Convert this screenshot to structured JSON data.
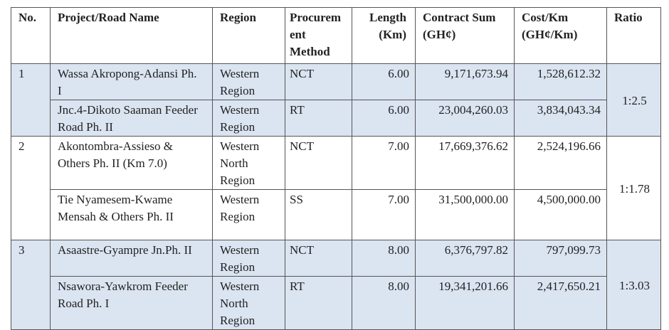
{
  "table": {
    "header": [
      "No.",
      "Project/Road Name",
      "Region",
      "Procurement Method",
      "Length (Km)",
      "Contract Sum (GH¢)",
      "Cost/Km (GH¢/Km)",
      "Ratio"
    ],
    "groups": [
      {
        "no": "1",
        "ratio": "1:2.5",
        "rows": [
          [
            "Wassa Akropong-Adansi Ph. I",
            "Western Region",
            "NCT",
            "6.00",
            "9,171,673.94",
            "1,528,612.32"
          ],
          [
            "Jnc.4-Dikoto Saaman Feeder Road Ph. II",
            "Western Region",
            "RT",
            "6.00",
            "23,004,260.03",
            "3,834,043.34"
          ]
        ]
      },
      {
        "no": "2",
        "ratio": "1:1.78",
        "rows": [
          [
            "Akontombra-Assieso & Others Ph. II (Km 7.0)",
            "Western North Region",
            "NCT",
            "7.00",
            "17,669,376.62",
            "2,524,196.66"
          ],
          [
            "Tie Nyamesem-Kwame Mensah & Others Ph. II",
            "Western Region",
            "SS",
            "7.00",
            "31,500,000.00",
            "4,500,000.00"
          ]
        ]
      },
      {
        "no": "3",
        "ratio": "1:3.03",
        "rows": [
          [
            "Asaastre-Gyampre Jn.Ph. II",
            "Western Region",
            "NCT",
            "8.00",
            "6,376,797.82",
            "797,099.73"
          ],
          [
            "Nsawora-Yawkrom Feeder Road Ph. I",
            "Western North Region",
            "RT",
            "8.00",
            "19,341,201.66",
            "2,417,650.21"
          ]
        ]
      }
    ]
  }
}
